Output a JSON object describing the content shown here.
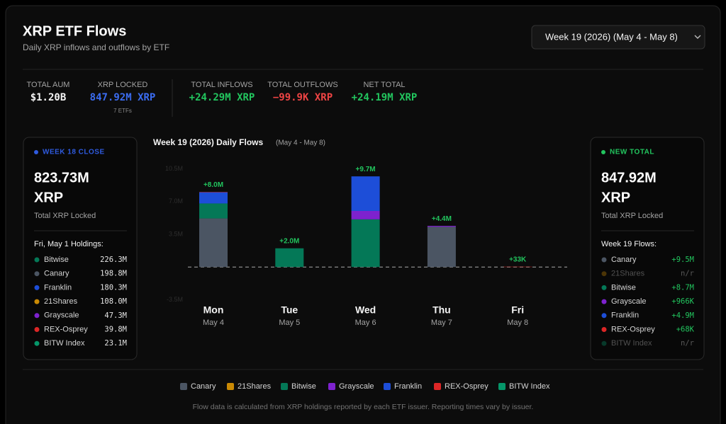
{
  "header": {
    "title": "XRP ETF Flows",
    "subtitle": "Daily XRP inflows and outflows by ETF",
    "week_selector": "Week 19 (2026) (May 4 - May 8)"
  },
  "stats": [
    {
      "label": "TOTAL AUM",
      "value": "$1.20B",
      "color": "#f5f5f5"
    },
    {
      "label": "XRP LOCKED",
      "value": "847.92M XRP",
      "note": "7 ETFs",
      "color": "#3b6cf0"
    },
    {
      "label": "TOTAL INFLOWS",
      "value": "+24.29M XRP",
      "color": "#22c55e"
    },
    {
      "label": "TOTAL OUTFLOWS",
      "value": "−99.9K XRP",
      "color": "#ef4444"
    },
    {
      "label": "NET TOTAL",
      "value": "+24.19M XRP",
      "color": "#22c55e"
    }
  ],
  "left_card": {
    "badge": "WEEK 18 CLOSE",
    "color": "#2f5be0",
    "amount": "823.73M",
    "unit": "XRP",
    "caption": "Total XRP Locked",
    "list_title": "Fri, May 1 Holdings:",
    "items": [
      {
        "name": "Bitwise",
        "value": "226.3M"
      },
      {
        "name": "Canary",
        "value": "198.8M"
      },
      {
        "name": "Franklin",
        "value": "180.3M"
      },
      {
        "name": "21Shares",
        "value": "108.0M"
      },
      {
        "name": "Grayscale",
        "value": "47.3M"
      },
      {
        "name": "REX-Osprey",
        "value": "39.8M"
      },
      {
        "name": "BITW Index",
        "value": "23.1M"
      }
    ]
  },
  "right_card": {
    "badge": "NEW TOTAL",
    "color": "#22c55e",
    "amount": "847.92M",
    "unit": "XRP",
    "caption": "Total XRP Locked",
    "list_title": "Week 19 Flows:",
    "items": [
      {
        "name": "Canary",
        "value": "+9.5M"
      },
      {
        "name": "21Shares",
        "value": "n/r"
      },
      {
        "name": "Bitwise",
        "value": "+8.7M"
      },
      {
        "name": "Grayscale",
        "value": "+966K"
      },
      {
        "name": "Franklin",
        "value": "+4.9M"
      },
      {
        "name": "REX-Osprey",
        "value": "+68K"
      },
      {
        "name": "BITW Index",
        "value": "n/r"
      }
    ]
  },
  "chart_data": {
    "type": "bar",
    "stacked": true,
    "title": "Week 19 (2026) Daily Flows",
    "subtitle": "(May 4 - May 8)",
    "categories": [
      "Mon",
      "Tue",
      "Wed",
      "Thu",
      "Fri"
    ],
    "dates": [
      "May 4",
      "May 5",
      "May 6",
      "May 7",
      "May 8"
    ],
    "series": [
      {
        "name": "Canary",
        "color": "#4b5563",
        "values": [
          5.2,
          0,
          0,
          4.3,
          0
        ]
      },
      {
        "name": "21Shares",
        "color": "#ca8a04",
        "values": [
          0,
          0,
          0,
          0,
          0
        ]
      },
      {
        "name": "Bitwise",
        "color": "#047857",
        "values": [
          1.6,
          2.0,
          5.1,
          0,
          0
        ]
      },
      {
        "name": "Grayscale",
        "color": "#7e22ce",
        "values": [
          0,
          0,
          0.9,
          0.1,
          0
        ]
      },
      {
        "name": "Franklin",
        "color": "#1d4ed8",
        "values": [
          1.2,
          0,
          3.7,
          0,
          0
        ]
      },
      {
        "name": "REX-Osprey",
        "color": "#dc2626",
        "values": [
          0.035,
          0,
          0,
          0,
          0.033
        ]
      },
      {
        "name": "BITW Index",
        "color": "#059669",
        "values": [
          0,
          0,
          0,
          0,
          0
        ]
      }
    ],
    "totals": {
      "values": [
        8.0,
        2.0,
        9.7,
        4.4,
        0.033
      ],
      "value_labels": [
        "+8.0M",
        "+2.0M",
        "+9.7M",
        "+4.4M",
        "+33K"
      ],
      "color": "#22c55e"
    },
    "ylim": [
      -4,
      11
    ],
    "yticks": [
      {
        "value": -3.5,
        "label": "-3.5M"
      },
      {
        "value": 3.5,
        "label": "3.5M"
      },
      {
        "value": 7,
        "label": "7.0M"
      },
      {
        "value": 10.5,
        "label": "10.5M"
      }
    ]
  },
  "footer": "Flow data is calculated from XRP holdings reported by each ETF issuer. Reporting times vary by issuer."
}
